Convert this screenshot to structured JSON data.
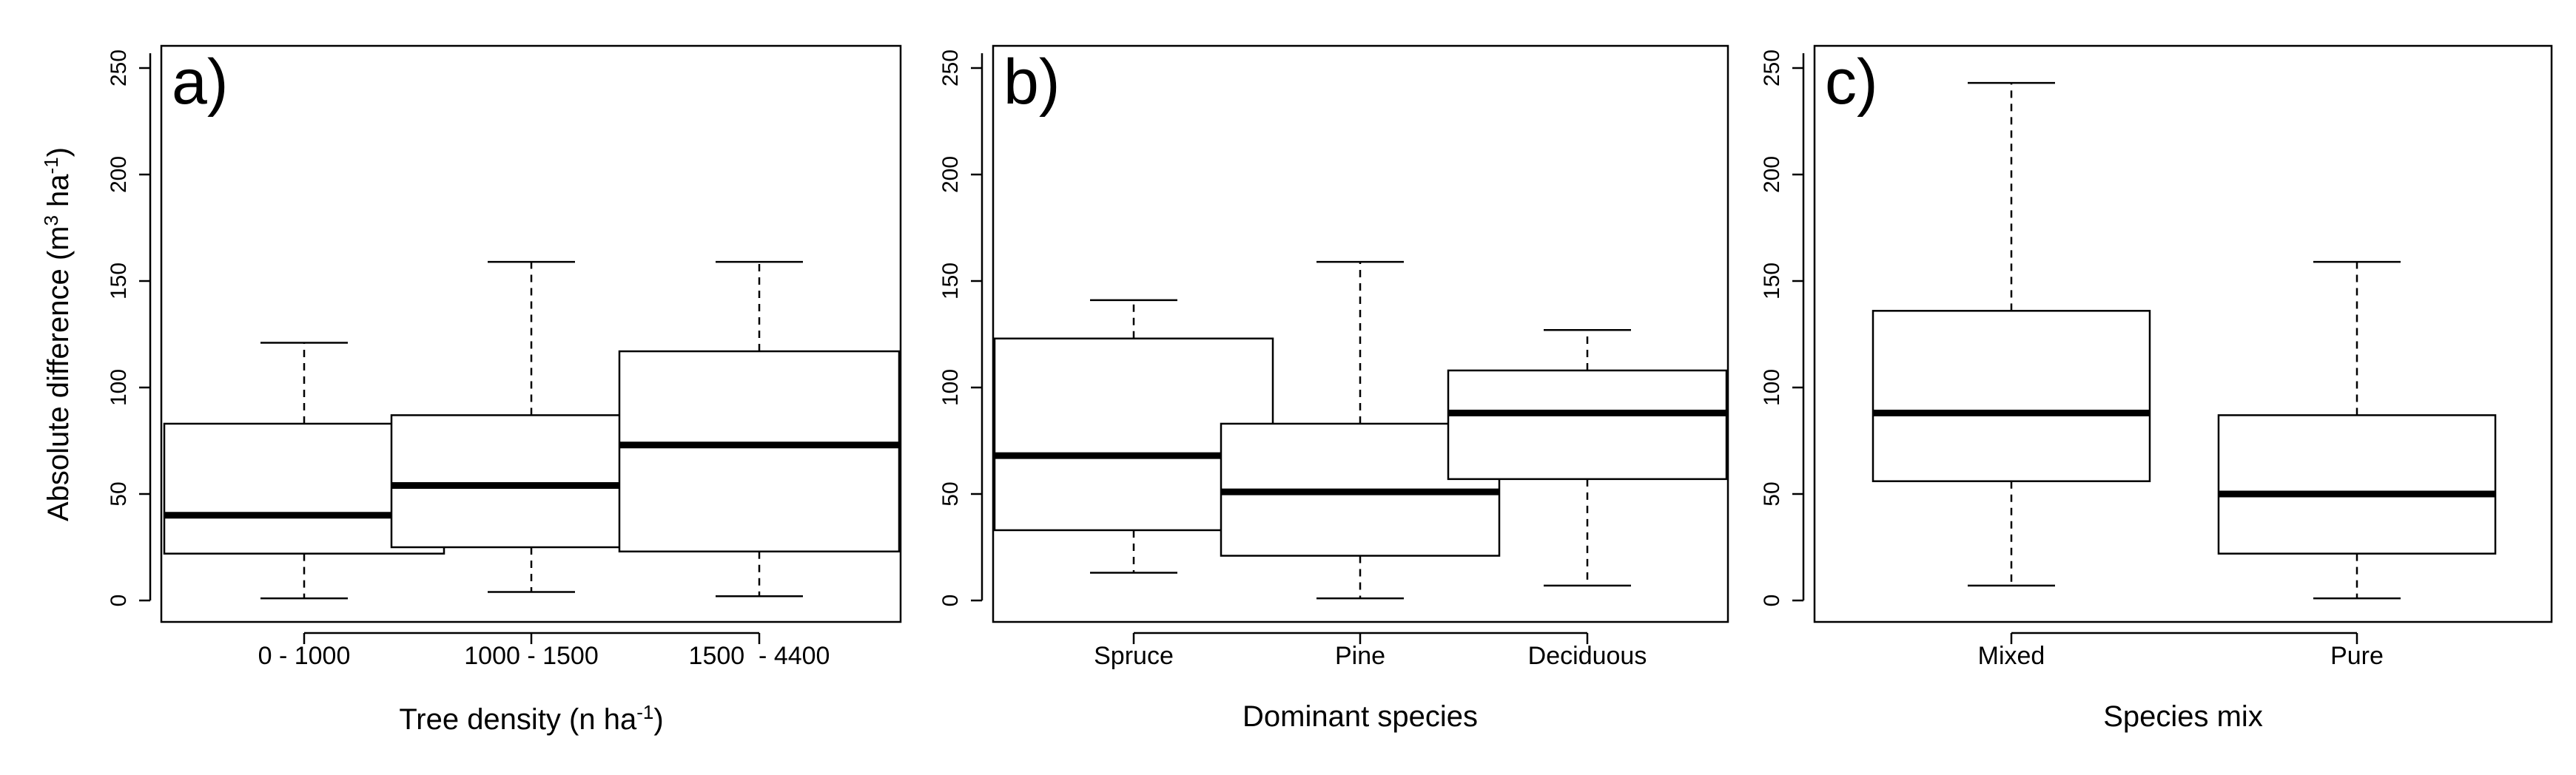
{
  "chart_data": [
    {
      "type": "boxplot",
      "panel_label": "a)",
      "xlabel_main": "Tree density (n ha",
      "xlabel_sup": "-1",
      "xlabel_end": ")",
      "ylabel_main": "Absolute difference (m",
      "ylabel_sup1": "3",
      "ylabel_mid": " ha",
      "ylabel_sup2": "-1",
      "ylabel_end": ")",
      "ylim": [
        0,
        260
      ],
      "yticks": [
        "0",
        "50",
        "100",
        "150",
        "200",
        "250"
      ],
      "categories": [
        "0 - 1000",
        "1000 - 1500",
        "1500  - 4400"
      ],
      "boxes": [
        {
          "whisker_low": 1,
          "q1": 22,
          "median": 40,
          "q3": 83,
          "whisker_high": 121
        },
        {
          "whisker_low": 4,
          "q1": 25,
          "median": 54,
          "q3": 87,
          "whisker_high": 159
        },
        {
          "whisker_low": 2,
          "q1": 23,
          "median": 73,
          "q3": 117,
          "whisker_high": 159
        }
      ]
    },
    {
      "type": "boxplot",
      "panel_label": "b)",
      "xlabel": "Dominant species",
      "ylim": [
        0,
        260
      ],
      "yticks": [
        "0",
        "50",
        "100",
        "150",
        "200",
        "250"
      ],
      "categories": [
        "Spruce",
        "Pine",
        "Deciduous"
      ],
      "boxes": [
        {
          "whisker_low": 13,
          "q1": 33,
          "median": 68,
          "q3": 123,
          "whisker_high": 141
        },
        {
          "whisker_low": 1,
          "q1": 21,
          "median": 51,
          "q3": 83,
          "whisker_high": 159
        },
        {
          "whisker_low": 7,
          "q1": 57,
          "median": 88,
          "q3": 108,
          "whisker_high": 127
        }
      ]
    },
    {
      "type": "boxplot",
      "panel_label": "c)",
      "xlabel": "Species mix",
      "ylim": [
        0,
        260
      ],
      "yticks": [
        "0",
        "50",
        "100",
        "150",
        "200",
        "250"
      ],
      "categories": [
        "Mixed",
        "Pure"
      ],
      "boxes": [
        {
          "whisker_low": 7,
          "q1": 56,
          "median": 88,
          "q3": 136,
          "whisker_high": 243
        },
        {
          "whisker_low": 1,
          "q1": 22,
          "median": 50,
          "q3": 87,
          "whisker_high": 159
        }
      ]
    }
  ]
}
